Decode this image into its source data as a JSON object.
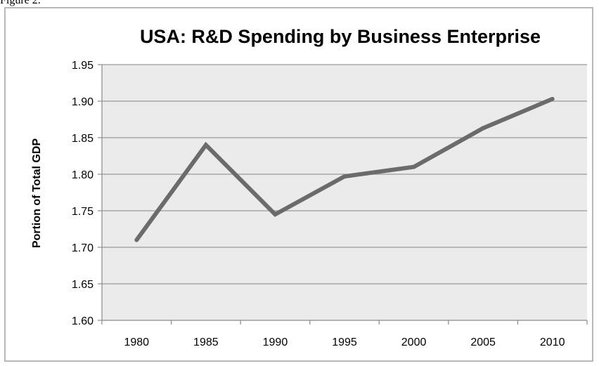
{
  "caption": "Figure 2.",
  "chart_data": {
    "type": "line",
    "title": "USA: R&D Spending by Business Enterprise",
    "xlabel": "",
    "ylabel": "Portion of Total GDP",
    "categories": [
      "1980",
      "1985",
      "1990",
      "1995",
      "2000",
      "2005",
      "2010"
    ],
    "series": [
      {
        "values": [
          1.71,
          1.84,
          1.745,
          1.797,
          1.81,
          1.863,
          1.903
        ]
      }
    ],
    "ylim": [
      1.6,
      1.95
    ],
    "yticks": [
      "1.60",
      "1.65",
      "1.70",
      "1.75",
      "1.80",
      "1.85",
      "1.90",
      "1.95"
    ],
    "grid": true,
    "legend": "none",
    "colors": {
      "line": "#6b6b6b",
      "plot_background": "#ebebeb",
      "gridline": "#9a9a9a",
      "axis": "#8a8a8a",
      "frame": "#b9b9b9"
    }
  }
}
